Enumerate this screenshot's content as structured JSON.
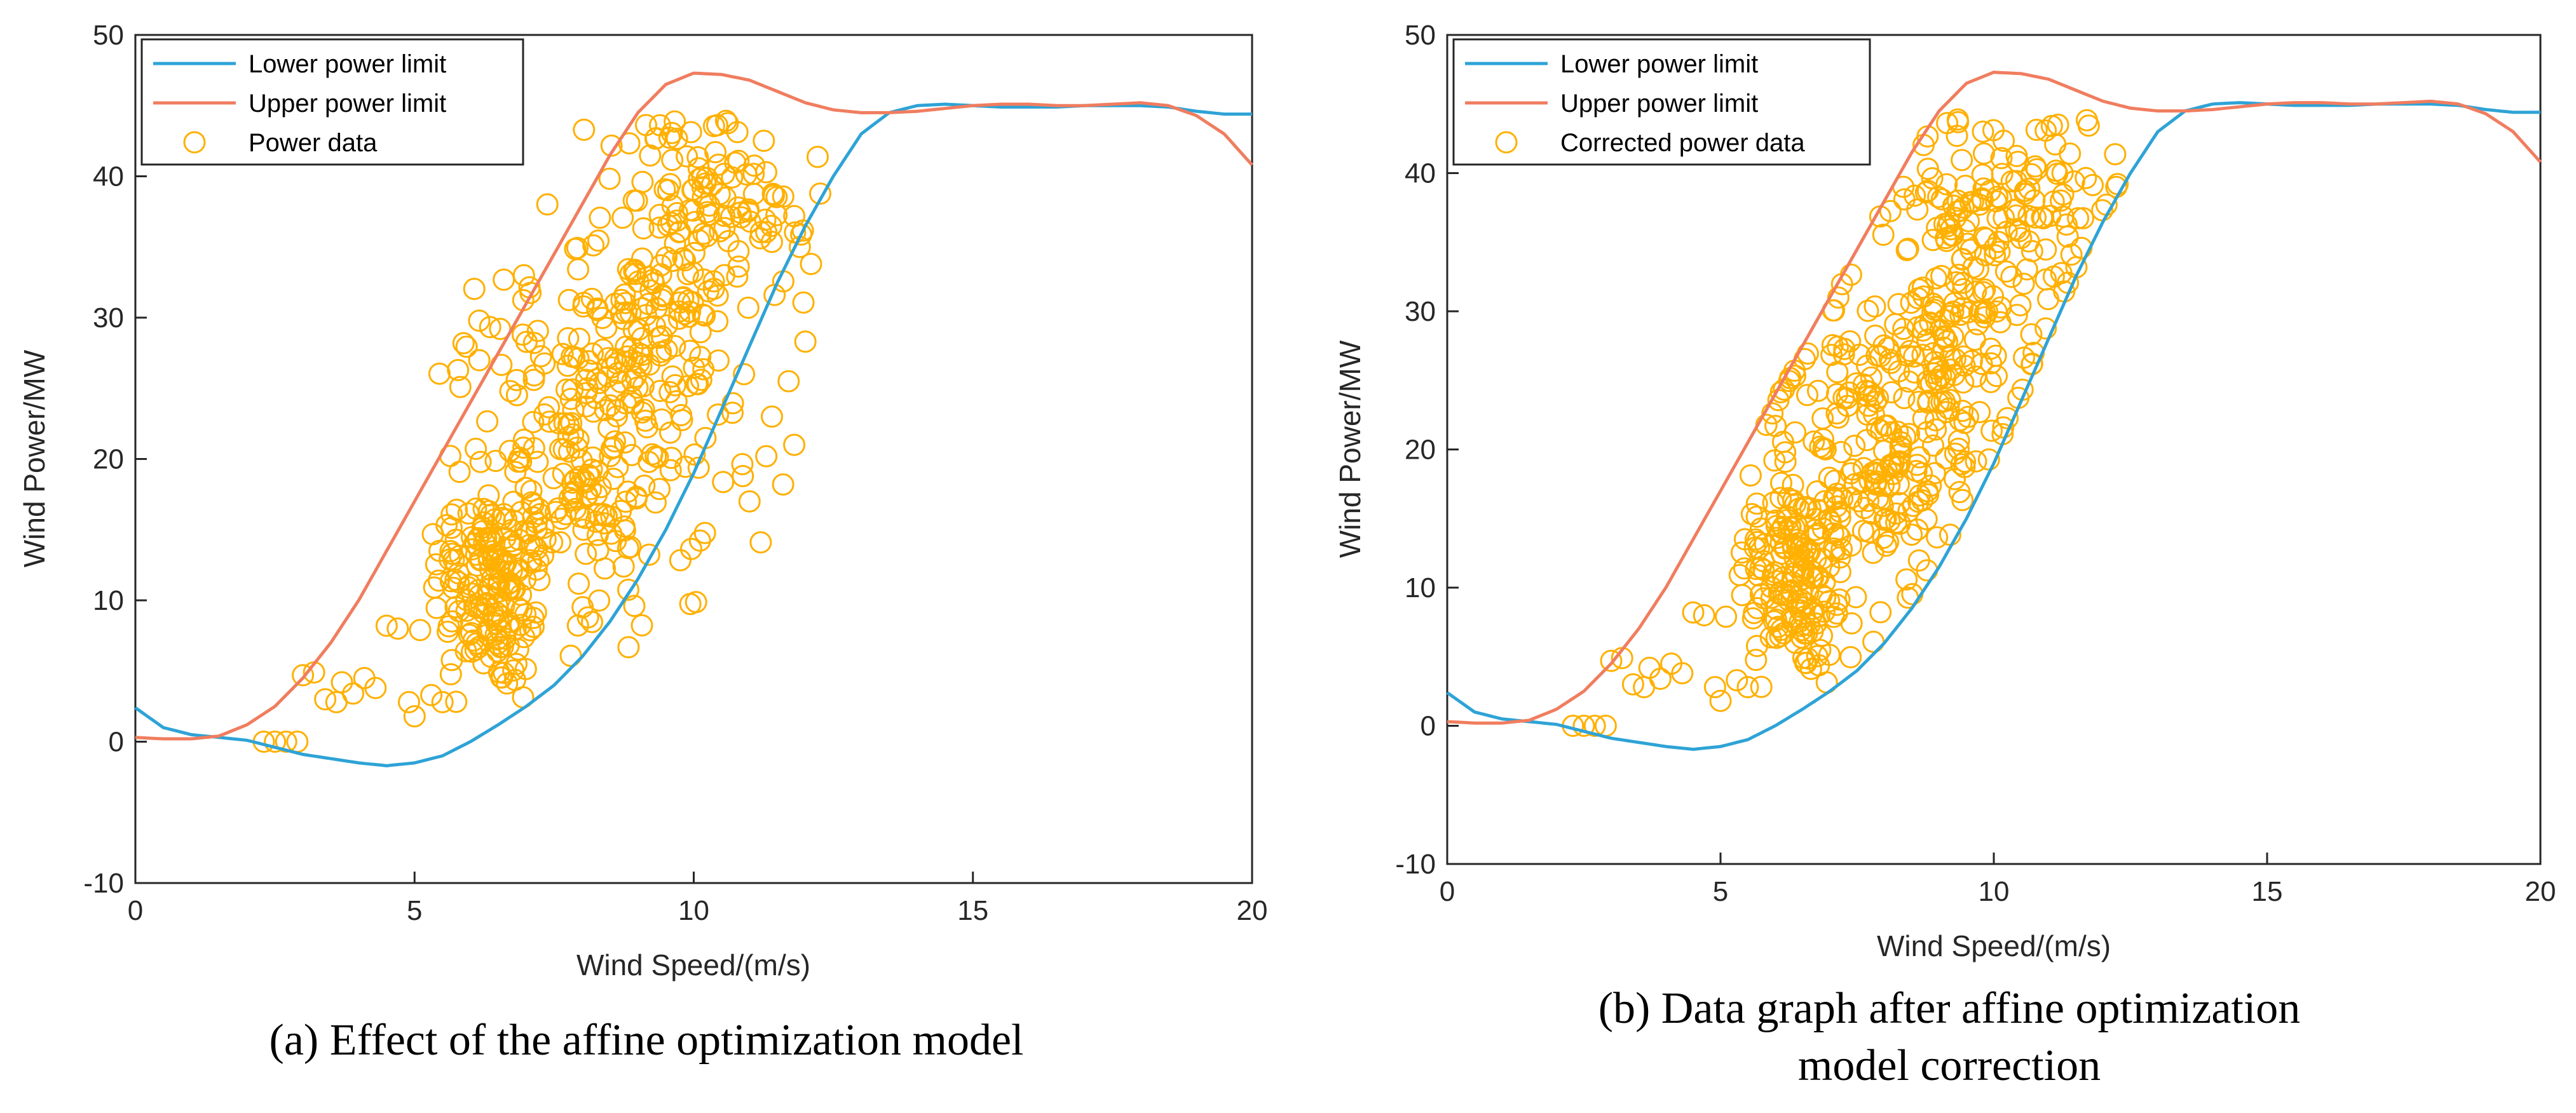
{
  "chart_data": [
    {
      "type": "scatter",
      "panel": "a",
      "caption_lines": [
        "(a) Effect of the affine optimization model"
      ],
      "xlabel": "Wind Speed/(m/s)",
      "ylabel": "Wind Power/MW",
      "xlim": [
        0,
        20
      ],
      "ylim": [
        -10,
        50
      ],
      "xticks": [
        "0",
        "5",
        "10",
        "15",
        "20"
      ],
      "yticks": [
        "-10",
        "0",
        "10",
        "20",
        "30",
        "40",
        "50"
      ],
      "legend_position": "top-left",
      "series": [
        {
          "name": "Lower power limit",
          "kind": "line",
          "color": "#2ea3d6",
          "x": [
            0,
            0.5,
            1,
            1.5,
            2,
            2.5,
            3,
            3.5,
            4,
            4.5,
            5,
            5.5,
            6,
            6.5,
            7,
            7.5,
            8,
            8.5,
            9,
            9.5,
            10,
            10.5,
            11,
            11.5,
            12,
            12.5,
            13,
            13.5,
            14,
            14.5,
            15,
            15.5,
            16,
            16.5,
            17,
            17.5,
            18,
            18.5,
            19,
            19.5,
            20
          ],
          "y": [
            2.4,
            1.0,
            0.5,
            0.3,
            0.1,
            -0.4,
            -0.9,
            -1.2,
            -1.5,
            -1.7,
            -1.5,
            -1.0,
            0.0,
            1.2,
            2.5,
            4.0,
            6.0,
            8.5,
            11.5,
            15.0,
            19.0,
            23.5,
            28.0,
            32.5,
            36.5,
            40.0,
            43.0,
            44.5,
            45.0,
            45.1,
            45.0,
            44.9,
            44.9,
            44.9,
            45.0,
            45.0,
            45.0,
            44.9,
            44.6,
            44.4,
            44.4
          ]
        },
        {
          "name": "Upper power limit",
          "kind": "line",
          "color": "#f07d5f",
          "x": [
            0,
            0.5,
            1,
            1.5,
            2,
            2.5,
            3,
            3.5,
            4,
            4.5,
            5,
            5.5,
            6,
            6.5,
            7,
            7.5,
            8,
            8.5,
            9,
            9.5,
            10,
            10.5,
            11,
            11.5,
            12,
            12.5,
            13,
            13.5,
            14,
            14.5,
            15,
            15.5,
            16,
            16.5,
            17,
            17.5,
            18,
            18.5,
            19,
            19.5,
            20
          ],
          "y": [
            0.3,
            0.2,
            0.2,
            0.4,
            1.2,
            2.5,
            4.5,
            7.0,
            10.0,
            13.5,
            17.0,
            20.5,
            24.0,
            27.5,
            31.0,
            34.5,
            38.0,
            41.5,
            44.5,
            46.5,
            47.3,
            47.2,
            46.8,
            46.0,
            45.2,
            44.7,
            44.5,
            44.5,
            44.6,
            44.8,
            45.0,
            45.1,
            45.1,
            45.0,
            45.0,
            45.1,
            45.2,
            45.0,
            44.3,
            43.0,
            40.8
          ]
        },
        {
          "name": "Power data",
          "kind": "points",
          "color": "#ffb000"
        }
      ]
    },
    {
      "type": "scatter",
      "panel": "b",
      "caption_lines": [
        "(b) Data graph after affine optimization",
        "model correction"
      ],
      "xlabel": "Wind Speed/(m/s)",
      "ylabel": "Wind Power/MW",
      "xlim": [
        0,
        20
      ],
      "ylim": [
        -10,
        50
      ],
      "xticks": [
        "0",
        "5",
        "10",
        "15",
        "20"
      ],
      "yticks": [
        "-10",
        "0",
        "10",
        "20",
        "30",
        "40",
        "50"
      ],
      "legend_position": "top-left",
      "series": [
        {
          "name": "Lower power limit",
          "kind": "line",
          "color": "#2ea3d6",
          "x": [
            0,
            0.5,
            1,
            1.5,
            2,
            2.5,
            3,
            3.5,
            4,
            4.5,
            5,
            5.5,
            6,
            6.5,
            7,
            7.5,
            8,
            8.5,
            9,
            9.5,
            10,
            10.5,
            11,
            11.5,
            12,
            12.5,
            13,
            13.5,
            14,
            14.5,
            15,
            15.5,
            16,
            16.5,
            17,
            17.5,
            18,
            18.5,
            19,
            19.5,
            20
          ],
          "y": [
            2.4,
            1.0,
            0.5,
            0.3,
            0.1,
            -0.4,
            -0.9,
            -1.2,
            -1.5,
            -1.7,
            -1.5,
            -1.0,
            0.0,
            1.2,
            2.5,
            4.0,
            6.0,
            8.5,
            11.5,
            15.0,
            19.0,
            23.5,
            28.0,
            32.5,
            36.5,
            40.0,
            43.0,
            44.5,
            45.0,
            45.1,
            45.0,
            44.9,
            44.9,
            44.9,
            45.0,
            45.0,
            45.0,
            44.9,
            44.6,
            44.4,
            44.4
          ]
        },
        {
          "name": "Upper power limit",
          "kind": "line",
          "color": "#f07d5f",
          "x": [
            0,
            0.5,
            1,
            1.5,
            2,
            2.5,
            3,
            3.5,
            4,
            4.5,
            5,
            5.5,
            6,
            6.5,
            7,
            7.5,
            8,
            8.5,
            9,
            9.5,
            10,
            10.5,
            11,
            11.5,
            12,
            12.5,
            13,
            13.5,
            14,
            14.5,
            15,
            15.5,
            16,
            16.5,
            17,
            17.5,
            18,
            18.5,
            19,
            19.5,
            20
          ],
          "y": [
            0.3,
            0.2,
            0.2,
            0.4,
            1.2,
            2.5,
            4.5,
            7.0,
            10.0,
            13.5,
            17.0,
            20.5,
            24.0,
            27.5,
            31.0,
            34.5,
            38.0,
            41.5,
            44.5,
            46.5,
            47.3,
            47.2,
            46.8,
            46.0,
            45.2,
            44.7,
            44.5,
            44.5,
            44.6,
            44.8,
            45.0,
            45.1,
            45.1,
            45.0,
            45.0,
            45.1,
            45.2,
            45.0,
            44.3,
            43.0,
            40.8
          ]
        },
        {
          "name": "Corrected power data",
          "kind": "points",
          "color": "#ffb000"
        }
      ]
    }
  ]
}
